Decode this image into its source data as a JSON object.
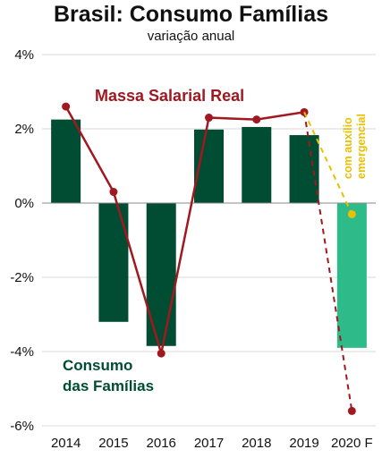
{
  "chart_data": {
    "type": "bar",
    "title": "Brasil: Consumo Famílias",
    "subtitle": "variação anual",
    "categories": [
      "2014",
      "2015",
      "2016",
      "2017",
      "2018",
      "2019",
      "2020 F"
    ],
    "ylim": [
      -6,
      4
    ],
    "y_ticks": [
      4,
      2,
      0,
      -2,
      -4,
      -6
    ],
    "y_tick_labels": [
      "4%",
      "2%",
      "0%",
      "-2%",
      "-4%",
      "-6%"
    ],
    "grid": true,
    "series": [
      {
        "name": "Consumo das Famílias",
        "kind": "bar",
        "values": [
          2.25,
          -3.2,
          -3.85,
          1.98,
          2.05,
          1.83,
          -3.9
        ],
        "color": "#004d33",
        "forecast_color": "#2dbb8a"
      },
      {
        "name": "Massa Salarial Real",
        "kind": "line",
        "values": [
          2.6,
          0.3,
          -4.05,
          2.3,
          2.25,
          2.45,
          -5.6
        ],
        "color": "#a01820",
        "forecast_style": "dashed"
      },
      {
        "name": "com auxílio emergencial",
        "kind": "line",
        "from_category": "2019",
        "to_category": "2020 F",
        "from_value": 2.45,
        "to_value": -0.3,
        "color": "#e8c000",
        "style": "dashed"
      }
    ],
    "annotations": {
      "salary_label": "Massa Salarial Real",
      "consumption_label_1": "Consumo",
      "consumption_label_2": "das Famílias",
      "aid_label_1": "com auxílio",
      "aid_label_2": "emergencial"
    }
  }
}
